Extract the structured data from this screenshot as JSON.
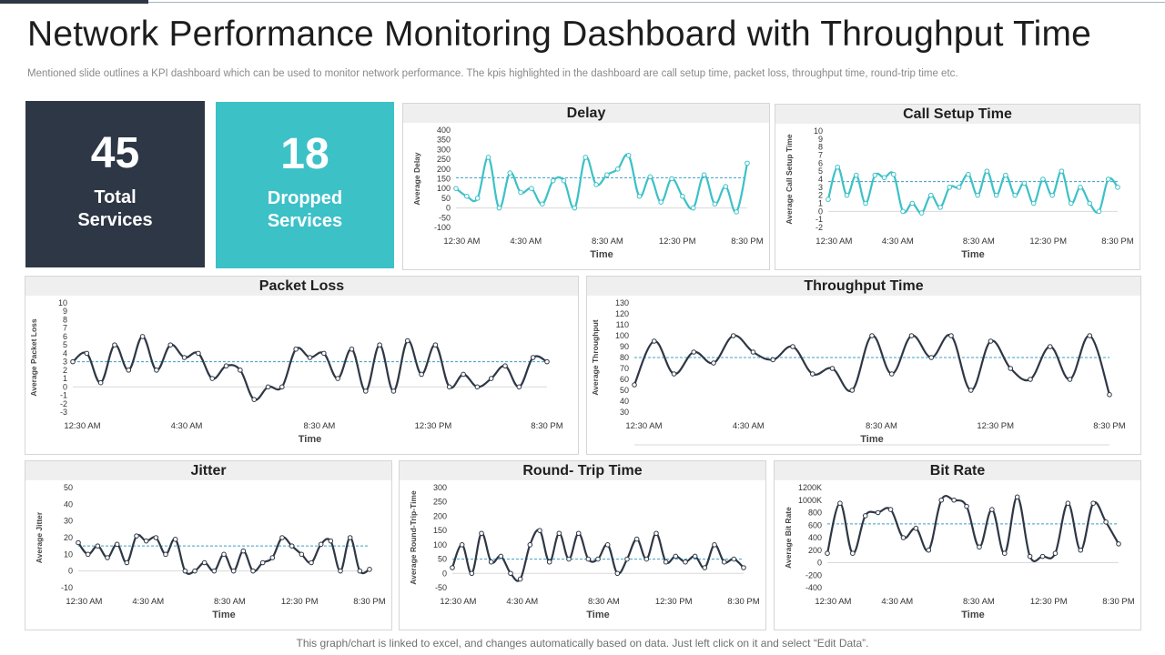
{
  "header": {
    "title": "Network Performance Monitoring Dashboard with Throughput Time",
    "subtitle": "Mentioned slide outlines a KPI dashboard which can be used to monitor network performance. The kpis highlighted in the dashboard are call setup time, packet loss, throughput time, round-trip time etc."
  },
  "kpis": [
    {
      "value": "45",
      "label_line1": "Total",
      "label_line2": "Services",
      "color": "#2e3745"
    },
    {
      "value": "18",
      "label_line1": "Dropped",
      "label_line2": "Services",
      "color": "#3cc1c7"
    }
  ],
  "footer": {
    "note": "This graph/chart is linked to excel,  and changes automatically based on data. Just left click on it and select “Edit Data”."
  },
  "colors": {
    "teal_line": "#3cc1c7",
    "dark_line": "#2e3745",
    "avg_line": "#3b9fc4"
  },
  "chart_data": [
    {
      "id": "delay",
      "type": "line",
      "title": "Delay",
      "xlabel": "Time",
      "ylabel": "Average Delay",
      "ylim": [
        -100,
        400
      ],
      "yticks": [
        "400",
        "350",
        "300",
        "250",
        "200",
        "150",
        "100",
        "50",
        "0",
        "-50",
        "-100"
      ],
      "xticks": [
        "12:30 AM",
        "4:30 AM",
        "8:30 AM",
        "12:30 PM",
        "8:30 PM"
      ],
      "series": [
        {
          "color": "#3cc1c7",
          "values": [
            100,
            60,
            50,
            260,
            0,
            180,
            80,
            100,
            20,
            140,
            140,
            0,
            260,
            120,
            170,
            200,
            270,
            60,
            160,
            30,
            150,
            60,
            0,
            170,
            20,
            110,
            -20,
            230
          ]
        }
      ],
      "average": 155
    },
    {
      "id": "call-setup",
      "type": "line",
      "title": "Call Setup Time",
      "xlabel": "Time",
      "ylabel": "Average Call Setup Time",
      "ylim": [
        -2,
        10
      ],
      "yticks": [
        "10",
        "9",
        "8",
        "7",
        "6",
        "5",
        "4",
        "3",
        "2",
        "1",
        "0",
        "-1",
        "-2"
      ],
      "xticks": [
        "12:30 AM",
        "4:30 AM",
        "8:30 AM",
        "12:30 PM",
        "8:30 PM"
      ],
      "series": [
        {
          "color": "#3cc1c7",
          "values": [
            1.5,
            5.5,
            2,
            4.5,
            1,
            4.5,
            4.2,
            4.6,
            0,
            1,
            -0.2,
            2,
            0.5,
            3,
            3,
            4.6,
            2,
            5,
            2,
            4.5,
            2,
            3.5,
            1,
            4,
            2,
            5,
            1,
            3,
            1,
            0,
            4,
            3
          ]
        }
      ],
      "average": 3.7
    },
    {
      "id": "packet-loss",
      "type": "line",
      "title": "Packet Loss",
      "xlabel": "Time",
      "ylabel": "Average Packet Loss",
      "ylim": [
        -3,
        10
      ],
      "yticks": [
        "10",
        "9",
        "8",
        "7",
        "6",
        "5",
        "4",
        "3",
        "2",
        "1",
        "0",
        "-1",
        "-2",
        "-3"
      ],
      "xticks": [
        "12:30 AM",
        "4:30 AM",
        "8:30 AM",
        "12:30 PM",
        "8:30 PM"
      ],
      "series": [
        {
          "color": "#2e3745",
          "values": [
            3,
            4,
            0.5,
            5,
            2,
            6,
            2,
            5,
            3.5,
            4,
            1,
            2.5,
            2,
            -1.5,
            0,
            0,
            4.5,
            3.5,
            4,
            1,
            4.5,
            -0.5,
            5,
            -0.5,
            5.5,
            1.5,
            5,
            0,
            1.5,
            0,
            1,
            2.5,
            0,
            3.5,
            3
          ]
        }
      ],
      "average": 3
    },
    {
      "id": "throughput",
      "type": "line",
      "title": "Throughput Time",
      "xlabel": "Time",
      "ylabel": "Average Throughput",
      "ylim": [
        30,
        130
      ],
      "yticks": [
        "130",
        "120",
        "110",
        "100",
        "90",
        "80",
        "70",
        "60",
        "50",
        "40",
        "30"
      ],
      "xticks": [
        "12:30 AM",
        "4:30 AM",
        "8:30 AM",
        "12:30 PM",
        "8:30 PM"
      ],
      "series": [
        {
          "color": "#2e3745",
          "values": [
            55,
            95,
            65,
            85,
            75,
            100,
            85,
            78,
            90,
            65,
            70,
            50,
            100,
            65,
            100,
            80,
            100,
            50,
            95,
            70,
            60,
            90,
            60,
            100,
            46
          ]
        }
      ],
      "average": 80
    },
    {
      "id": "jitter",
      "type": "line",
      "title": "Jitter",
      "xlabel": "Time",
      "ylabel": "Average Jitter",
      "ylim": [
        -10,
        50
      ],
      "yticks": [
        "50",
        "40",
        "30",
        "20",
        "10",
        "0",
        "-10"
      ],
      "xticks": [
        "12:30 AM",
        "4:30 AM",
        "8:30 AM",
        "12:30 PM",
        "8:30 PM"
      ],
      "series": [
        {
          "color": "#2e3745",
          "values": [
            17,
            10,
            15,
            8,
            16,
            5,
            21,
            18,
            20,
            10,
            19,
            0,
            0,
            5,
            0,
            10,
            0,
            12,
            0,
            5,
            8,
            20,
            15,
            10,
            5,
            16,
            18,
            0,
            20,
            0,
            1
          ]
        }
      ],
      "average": 15
    },
    {
      "id": "round-trip",
      "type": "line",
      "title": "Round- Trip Time",
      "xlabel": "Time",
      "ylabel": "Average Round-Trip-Time",
      "ylim": [
        -50,
        300
      ],
      "yticks": [
        "300",
        "250",
        "200",
        "150",
        "100",
        "50",
        "0",
        "-50"
      ],
      "xticks": [
        "12:30 AM",
        "4:30 AM",
        "8:30 AM",
        "12:30 PM",
        "8:30 PM"
      ],
      "series": [
        {
          "color": "#2e3745",
          "values": [
            20,
            100,
            0,
            140,
            40,
            60,
            0,
            -20,
            100,
            150,
            40,
            140,
            50,
            140,
            50,
            50,
            100,
            0,
            50,
            120,
            50,
            140,
            40,
            60,
            40,
            60,
            20,
            100,
            40,
            50,
            20
          ]
        }
      ],
      "average": 50
    },
    {
      "id": "bit-rate",
      "type": "line",
      "title": "Bit Rate",
      "xlabel": "Time",
      "ylabel": "Average Bit Rate",
      "ylim": [
        -400,
        1200
      ],
      "yticks": [
        "1200K",
        "1000K",
        "800",
        "600",
        "400",
        "200",
        "0",
        "-200",
        "-400"
      ],
      "xticks": [
        "12:30 AM",
        "4:30 AM",
        "8:30 AM",
        "12:30 PM",
        "8:30 PM"
      ],
      "series": [
        {
          "color": "#2e3745",
          "values": [
            150,
            950,
            150,
            750,
            800,
            850,
            400,
            550,
            200,
            1000,
            1000,
            900,
            250,
            850,
            150,
            1050,
            100,
            100,
            150,
            950,
            200,
            950,
            650,
            300
          ]
        }
      ],
      "average": 620
    }
  ]
}
